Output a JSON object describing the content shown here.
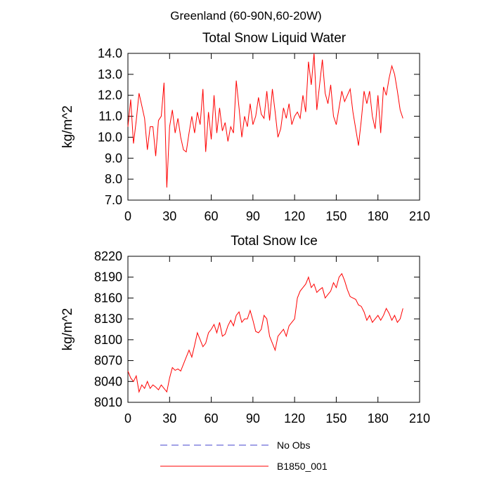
{
  "title": "Greenland (60-90N,60-20W)",
  "legend": {
    "items": [
      {
        "name": "No Obs",
        "color": "#4444cc",
        "dash": true
      },
      {
        "name": "B1850_001",
        "color": "#ff0000",
        "dash": false
      }
    ]
  },
  "chart_data": [
    {
      "type": "line",
      "title": "Total Snow Liquid Water",
      "ylabel": "kg/m^2",
      "x": [
        0,
        2,
        4,
        6,
        8,
        10,
        12,
        14,
        16,
        18,
        20,
        22,
        24,
        26,
        28,
        30,
        32,
        34,
        36,
        38,
        40,
        42,
        44,
        46,
        48,
        50,
        52,
        54,
        56,
        58,
        60,
        62,
        64,
        66,
        68,
        70,
        72,
        74,
        76,
        78,
        80,
        82,
        84,
        86,
        88,
        90,
        92,
        94,
        96,
        98,
        100,
        102,
        104,
        106,
        108,
        110,
        112,
        114,
        116,
        118,
        120,
        122,
        124,
        126,
        128,
        130,
        132,
        134,
        136,
        138,
        140,
        142,
        144,
        146,
        148,
        150,
        152,
        154,
        156,
        158,
        160,
        162,
        164,
        166,
        168,
        170,
        172,
        174,
        176,
        178,
        180,
        182,
        184,
        186,
        188,
        190,
        192,
        194,
        196,
        198
      ],
      "series": [
        {
          "color": "#ff0000",
          "values": [
            10.5,
            11.8,
            9.7,
            10.8,
            12.1,
            11.5,
            10.9,
            9.4,
            10.5,
            10.5,
            9.1,
            10.8,
            11.0,
            12.6,
            7.6,
            10.5,
            11.3,
            10.2,
            10.9,
            10.0,
            9.4,
            9.3,
            10.2,
            11.0,
            10.2,
            11.2,
            10.6,
            12.3,
            9.3,
            11.2,
            9.9,
            12.0,
            10.2,
            11.4,
            10.3,
            10.7,
            9.8,
            10.5,
            10.2,
            12.7,
            11.4,
            10.0,
            11.0,
            10.5,
            11.6,
            10.6,
            11.0,
            11.9,
            11.1,
            10.9,
            12.2,
            10.8,
            12.3,
            11.2,
            10.0,
            10.4,
            11.4,
            10.9,
            11.6,
            10.6,
            11.0,
            11.2,
            10.9,
            12.0,
            11.2,
            13.6,
            12.5,
            14.0,
            11.3,
            12.5,
            13.7,
            12.1,
            11.6,
            12.5,
            11.0,
            10.6,
            11.4,
            12.2,
            11.7,
            12.0,
            12.3,
            11.2,
            10.4,
            9.6,
            10.8,
            12.2,
            11.6,
            12.2,
            11.0,
            10.4,
            12.0,
            10.2,
            12.4,
            12.0,
            12.8,
            13.4,
            13.0,
            12.2,
            11.3,
            10.9
          ]
        }
      ],
      "xlim": [
        0,
        210
      ],
      "xticks": [
        0,
        30,
        60,
        90,
        120,
        150,
        180,
        210
      ],
      "ylim": [
        7,
        14
      ],
      "yticks": [
        {
          "value": 7,
          "label": "7.0"
        },
        {
          "value": 8,
          "label": "8.0"
        },
        {
          "value": 9,
          "label": "9.0"
        },
        {
          "value": 10,
          "label": "10.0"
        },
        {
          "value": 11,
          "label": "11.0"
        },
        {
          "value": 12,
          "label": "12.0"
        },
        {
          "value": 13,
          "label": "13.0"
        },
        {
          "value": 14,
          "label": "14.0"
        }
      ]
    },
    {
      "type": "line",
      "title": "Total Snow Ice",
      "ylabel": "kg/m^2",
      "x": [
        0,
        2,
        4,
        6,
        8,
        10,
        12,
        14,
        16,
        18,
        20,
        22,
        24,
        26,
        28,
        30,
        32,
        34,
        36,
        38,
        40,
        42,
        44,
        46,
        48,
        50,
        52,
        54,
        56,
        58,
        60,
        62,
        64,
        66,
        68,
        70,
        72,
        74,
        76,
        78,
        80,
        82,
        84,
        86,
        88,
        90,
        92,
        94,
        96,
        98,
        100,
        102,
        104,
        106,
        108,
        110,
        112,
        114,
        116,
        118,
        120,
        122,
        124,
        126,
        128,
        130,
        132,
        134,
        136,
        138,
        140,
        142,
        144,
        146,
        148,
        150,
        152,
        154,
        156,
        158,
        160,
        162,
        164,
        166,
        168,
        170,
        172,
        174,
        176,
        178,
        180,
        182,
        184,
        186,
        188,
        190,
        192,
        194,
        196,
        198
      ],
      "series": [
        {
          "color": "#ff0000",
          "values": [
            8055,
            8045,
            8040,
            8048,
            8025,
            8035,
            8030,
            8040,
            8030,
            8035,
            8032,
            8028,
            8035,
            8030,
            8025,
            8045,
            8060,
            8056,
            8058,
            8055,
            8065,
            8075,
            8085,
            8075,
            8092,
            8110,
            8100,
            8090,
            8095,
            8110,
            8115,
            8122,
            8110,
            8125,
            8105,
            8108,
            8120,
            8128,
            8120,
            8135,
            8140,
            8125,
            8130,
            8130,
            8142,
            8128,
            8112,
            8110,
            8115,
            8135,
            8130,
            8105,
            8095,
            8085,
            8105,
            8110,
            8115,
            8105,
            8120,
            8125,
            8130,
            8160,
            8170,
            8175,
            8180,
            8190,
            8175,
            8180,
            8168,
            8172,
            8175,
            8160,
            8165,
            8170,
            8182,
            8175,
            8190,
            8195,
            8185,
            8172,
            8162,
            8160,
            8158,
            8150,
            8148,
            8140,
            8128,
            8135,
            8125,
            8130,
            8135,
            8128,
            8135,
            8145,
            8138,
            8128,
            8135,
            8125,
            8130,
            8145
          ]
        }
      ],
      "xlim": [
        0,
        210
      ],
      "xticks": [
        0,
        30,
        60,
        90,
        120,
        150,
        180,
        210
      ],
      "ylim": [
        8010,
        8220
      ],
      "yticks": [
        8010,
        8040,
        8070,
        8100,
        8130,
        8160,
        8190,
        8220
      ]
    }
  ]
}
